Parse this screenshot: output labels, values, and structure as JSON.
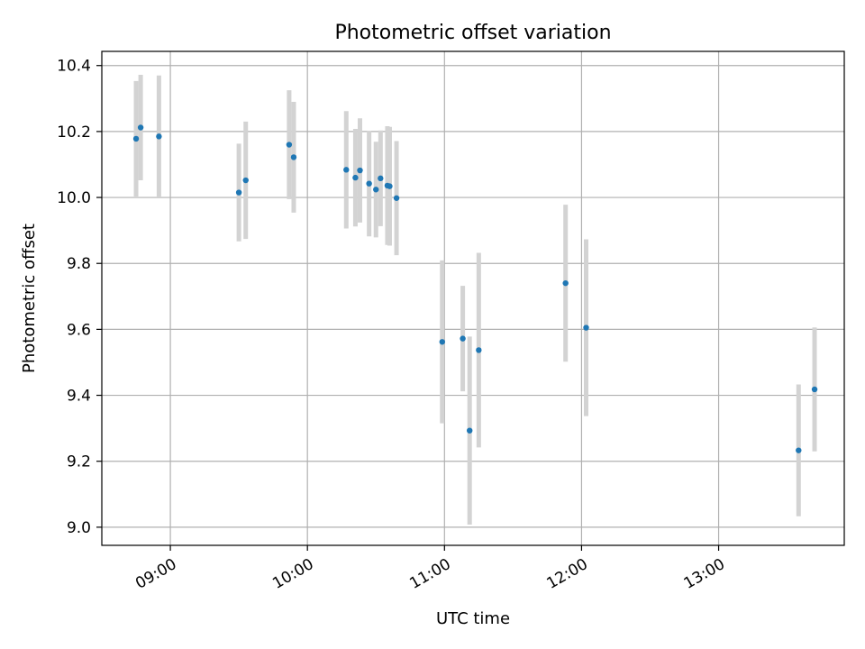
{
  "chart_data": {
    "type": "scatter",
    "title": "Photometric offset variation",
    "xlabel": "UTC time",
    "ylabel": "Photometric offset",
    "xlim": [
      "08:30",
      "13:55"
    ],
    "ylim": [
      8.945,
      10.443
    ],
    "grid": true,
    "x_ticks": [
      "09:00",
      "10:00",
      "11:00",
      "12:00",
      "13:00"
    ],
    "y_ticks": [
      "9.0",
      "9.2",
      "9.4",
      "9.6",
      "9.8",
      "10.0",
      "10.2",
      "10.4"
    ],
    "colors": {
      "point": "#1f77b4",
      "errorbar": "#d3d3d3",
      "grid": "#b0b0b0"
    },
    "series": [
      {
        "x": [
          "08:45",
          "08:47",
          "08:55",
          "09:30",
          "09:33",
          "09:52",
          "09:54",
          "10:17",
          "10:21",
          "10:23",
          "10:27",
          "10:30",
          "10:32",
          "10:35",
          "10:36",
          "10:39",
          "10:59",
          "11:08",
          "11:11",
          "11:15",
          "11:53",
          "12:02",
          "13:35",
          "13:42"
        ],
        "y": [
          10.178,
          10.212,
          10.185,
          10.015,
          10.052,
          10.16,
          10.122,
          10.084,
          10.06,
          10.082,
          10.042,
          10.024,
          10.058,
          10.036,
          10.034,
          9.998,
          9.562,
          9.572,
          9.293,
          9.537,
          9.74,
          9.605,
          9.233,
          9.418
        ],
        "yerr": [
          0.175,
          0.16,
          0.185,
          0.148,
          0.178,
          0.165,
          0.168,
          0.178,
          0.148,
          0.158,
          0.16,
          0.145,
          0.145,
          0.18,
          0.18,
          0.173,
          0.247,
          0.16,
          0.285,
          0.295,
          0.238,
          0.268,
          0.2,
          0.188
        ]
      }
    ]
  }
}
